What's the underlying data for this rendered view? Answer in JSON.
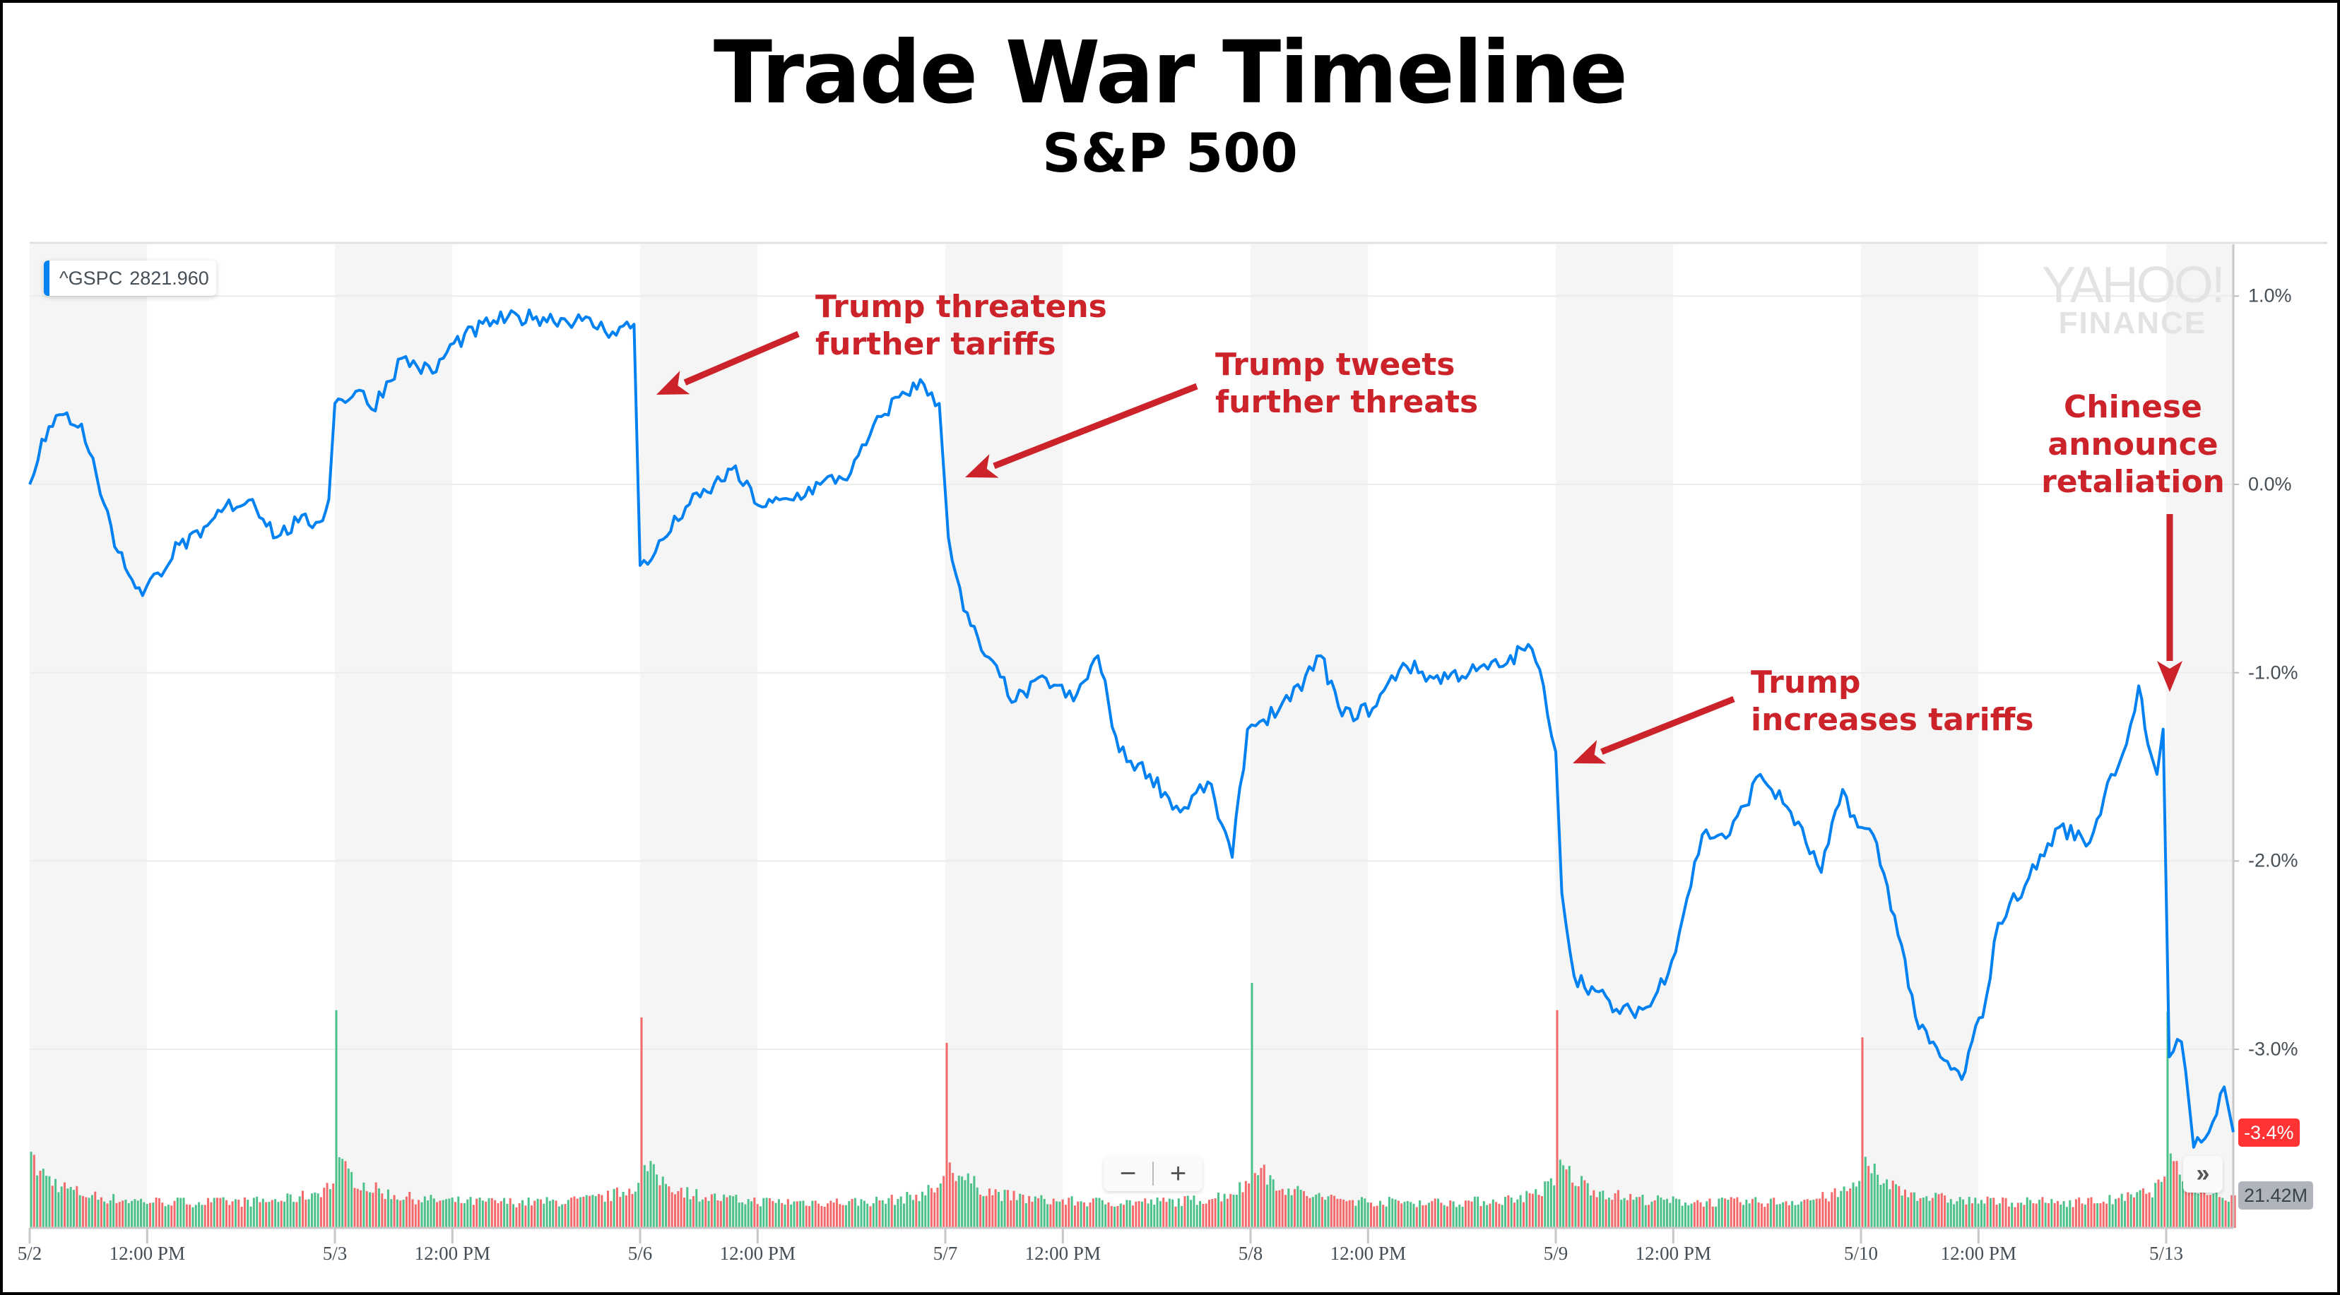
{
  "title": "Trade War Timeline",
  "subtitle": "S&P 500",
  "legend": {
    "symbol": "^GSPC",
    "value": "2821.960",
    "color": "#0081f2"
  },
  "watermark": {
    "line1": "YAHOO!",
    "line2": "FINANCE"
  },
  "controls": {
    "zoom_out": "−",
    "zoom_in": "+",
    "forward": "»"
  },
  "badges": {
    "last_change": "-3.4%",
    "last_volume": "21.42M"
  },
  "colors": {
    "line": "#0081f2",
    "annotation": "#cc2229",
    "vol_up": "#4cc28a",
    "vol_down": "#f46a6a",
    "badge_red": "#ff3333",
    "badge_grey": "#b0b4bd"
  },
  "annotations": [
    {
      "lines": [
        "Trump threatens",
        "further tariffs"
      ]
    },
    {
      "lines": [
        "Trump tweets",
        "further threats"
      ]
    },
    {
      "lines": [
        "Trump",
        "increases tariffs"
      ]
    },
    {
      "lines": [
        "Chinese",
        "announce",
        "retaliation"
      ]
    }
  ],
  "chart_data": {
    "type": "line",
    "title": "Trade War Timeline",
    "subtitle": "S&P 500",
    "series_name": "^GSPC",
    "xlabel": "",
    "ylabel": "",
    "x_unit": "trading days since 5/2 open",
    "xlim": [
      0,
      7.22
    ],
    "ylim": [
      -3.75,
      1.25
    ],
    "y_ticks": [
      1.0,
      0.0,
      -1.0,
      -2.0,
      -3.0
    ],
    "y_tick_labels": [
      "1.0%",
      "0.0%",
      "-1.0%",
      "-2.0%",
      "-3.0%"
    ],
    "x_ticks": [
      0,
      0.385,
      1,
      1.385,
      2,
      2.385,
      3,
      3.385,
      4,
      4.385,
      5,
      5.385,
      6,
      6.385,
      7
    ],
    "x_tick_labels": [
      "5/2",
      "12:00 PM",
      "5/3",
      "12:00 PM",
      "5/6",
      "12:00 PM",
      "5/7",
      "12:00 PM",
      "5/8",
      "12:00 PM",
      "5/9",
      "12:00 PM",
      "5/10",
      "12:00 PM",
      "5/13"
    ],
    "grid": true,
    "points": [
      [
        0,
        0
      ],
      [
        0.04,
        0.24
      ],
      [
        0.11,
        0.37
      ],
      [
        0.17,
        0.32
      ],
      [
        0.22,
        0.04
      ],
      [
        0.29,
        -0.36
      ],
      [
        0.37,
        -0.59
      ],
      [
        0.42,
        -0.47
      ],
      [
        0.49,
        -0.32
      ],
      [
        0.56,
        -0.28
      ],
      [
        0.64,
        -0.12
      ],
      [
        0.73,
        -0.08
      ],
      [
        0.81,
        -0.28
      ],
      [
        0.88,
        -0.2
      ],
      [
        0.95,
        -0.2
      ],
      [
        0.98,
        -0.08
      ],
      [
        1.0,
        0.43
      ],
      [
        1.08,
        0.5
      ],
      [
        1.12,
        0.4
      ],
      [
        1.22,
        0.67
      ],
      [
        1.32,
        0.59
      ],
      [
        1.39,
        0.75
      ],
      [
        1.52,
        0.87
      ],
      [
        1.66,
        0.89
      ],
      [
        1.81,
        0.87
      ],
      [
        1.91,
        0.81
      ],
      [
        1.98,
        0.85
      ],
      [
        2.0,
        -0.43
      ],
      [
        2.05,
        -0.36
      ],
      [
        2.15,
        -0.12
      ],
      [
        2.22,
        -0.04
      ],
      [
        2.3,
        0.08
      ],
      [
        2.4,
        -0.12
      ],
      [
        2.49,
        -0.08
      ],
      [
        2.59,
        0
      ],
      [
        2.69,
        0.06
      ],
      [
        2.79,
        0.36
      ],
      [
        2.86,
        0.49
      ],
      [
        2.93,
        0.53
      ],
      [
        2.98,
        0.43
      ],
      [
        3.01,
        -0.28
      ],
      [
        3.06,
        -0.67
      ],
      [
        3.13,
        -0.91
      ],
      [
        3.23,
        -1.15
      ],
      [
        3.33,
        -1.03
      ],
      [
        3.42,
        -1.15
      ],
      [
        3.5,
        -0.91
      ],
      [
        3.57,
        -1.42
      ],
      [
        3.67,
        -1.54
      ],
      [
        3.77,
        -1.74
      ],
      [
        3.86,
        -1.58
      ],
      [
        3.94,
        -1.98
      ],
      [
        3.99,
        -1.3
      ],
      [
        4.03,
        -1.26
      ],
      [
        4.13,
        -1.15
      ],
      [
        4.23,
        -0.91
      ],
      [
        4.3,
        -1.23
      ],
      [
        4.4,
        -1.19
      ],
      [
        4.5,
        -0.95
      ],
      [
        4.6,
        -1.03
      ],
      [
        4.74,
        -0.99
      ],
      [
        4.84,
        -0.95
      ],
      [
        4.91,
        -0.85
      ],
      [
        4.96,
        -1.07
      ],
      [
        5.0,
        -1.42
      ],
      [
        5.02,
        -2.17
      ],
      [
        5.06,
        -2.61
      ],
      [
        5.13,
        -2.69
      ],
      [
        5.21,
        -2.81
      ],
      [
        5.31,
        -2.77
      ],
      [
        5.38,
        -2.53
      ],
      [
        5.48,
        -1.86
      ],
      [
        5.57,
        -1.86
      ],
      [
        5.67,
        -1.54
      ],
      [
        5.77,
        -1.74
      ],
      [
        5.87,
        -2.06
      ],
      [
        5.94,
        -1.62
      ],
      [
        5.99,
        -1.82
      ],
      [
        6.04,
        -1.86
      ],
      [
        6.11,
        -2.29
      ],
      [
        6.19,
        -2.89
      ],
      [
        6.26,
        -3.04
      ],
      [
        6.33,
        -3.16
      ],
      [
        6.41,
        -2.73
      ],
      [
        6.45,
        -2.33
      ],
      [
        6.55,
        -2.09
      ],
      [
        6.65,
        -1.82
      ],
      [
        6.75,
        -1.9
      ],
      [
        6.82,
        -1.54
      ],
      [
        6.87,
        -1.38
      ],
      [
        6.91,
        -1.07
      ],
      [
        6.94,
        -1.38
      ],
      [
        6.97,
        -1.54
      ],
      [
        6.99,
        -1.3
      ],
      [
        7.01,
        -3.04
      ],
      [
        7.05,
        -2.96
      ],
      [
        7.09,
        -3.52
      ],
      [
        7.14,
        -3.44
      ],
      [
        7.19,
        -3.2
      ],
      [
        7.22,
        -3.44
      ]
    ],
    "volume": {
      "unit": "M shares",
      "last": 21.42,
      "typical": 14,
      "open_spikes": [
        {
          "day": 0,
          "value": 40,
          "direction": "up"
        },
        {
          "day": 1,
          "value": 120,
          "direction": "up"
        },
        {
          "day": 2,
          "value": 116,
          "direction": "down"
        },
        {
          "day": 3,
          "value": 102,
          "direction": "down"
        },
        {
          "day": 4,
          "value": 135,
          "direction": "up"
        },
        {
          "day": 5,
          "value": 120,
          "direction": "down"
        },
        {
          "day": 6,
          "value": 105,
          "direction": "down"
        },
        {
          "day": 7,
          "value": 119,
          "direction": "up"
        }
      ]
    }
  }
}
